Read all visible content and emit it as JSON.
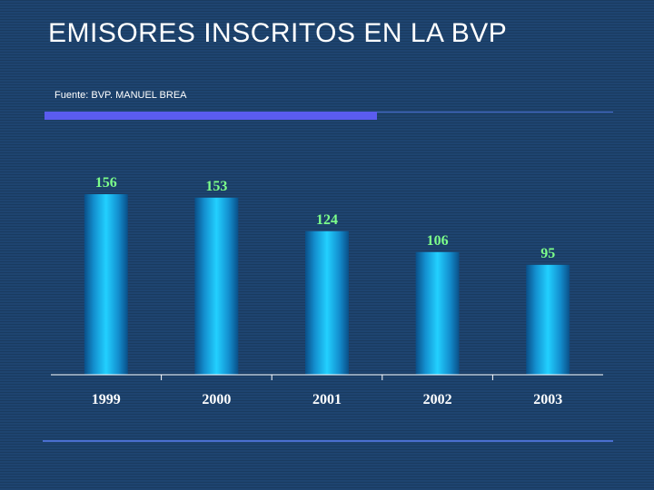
{
  "slide": {
    "title": "EMISORES INSCRITOS EN LA BVP",
    "source": "Fuente: BVP. MANUEL BREA"
  },
  "colors": {
    "value_label": "#7dff8a",
    "category_label": "#ffffff",
    "bar_light": "#22d0ff",
    "bar_dark": "#0a4f88",
    "axis": "#ffffff"
  },
  "chart_data": {
    "type": "bar",
    "title": "",
    "xlabel": "",
    "ylabel": "",
    "categories": [
      "1999",
      "2000",
      "2001",
      "2002",
      "2003"
    ],
    "values": [
      156,
      153,
      124,
      106,
      95
    ],
    "ylim": [
      0,
      160
    ],
    "grid": false,
    "legend": "none"
  }
}
